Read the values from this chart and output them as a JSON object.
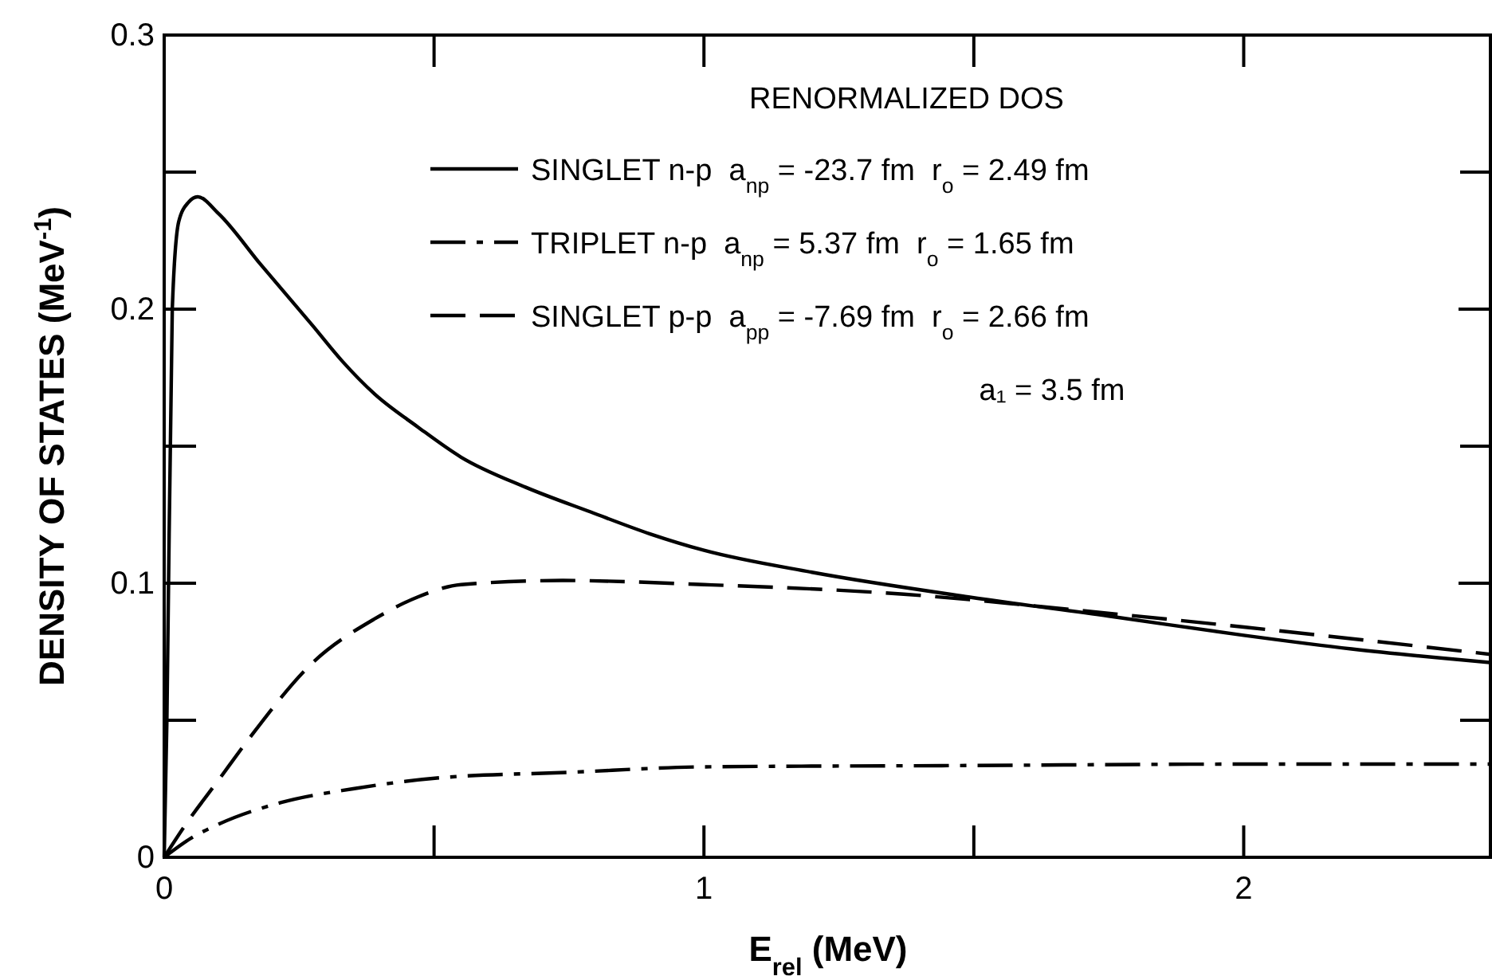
{
  "chart_data": {
    "type": "line",
    "xlabel": "E$_{rel}$  (MeV)",
    "ylabel": "DENSITY OF STATES (MeV$^{-1}$)",
    "legend_title": "RENORMALIZED DOS",
    "legend": "top",
    "xlim": [
      0,
      2.46
    ],
    "ylim": [
      0,
      0.3
    ],
    "xticks": [
      0,
      1,
      2
    ],
    "yticks": [
      0,
      0.1,
      0.2,
      0.3
    ],
    "grid": false,
    "marker": "none",
    "annotations": [
      "a₁ = 3.5 fm"
    ],
    "series": [
      {
        "name": "SINGLET n-p  a$_{np}$ = -23.7 fm  r$_{o}$ = 2.49 fm",
        "color": "#000000",
        "line_style": "solid",
        "x": [
          0,
          0.005,
          0.015,
          0.027,
          0.045,
          0.062,
          0.1,
          0.18,
          0.275,
          0.33,
          0.39,
          0.47,
          0.55,
          0.67,
          0.79,
          0.9,
          1.0,
          1.2,
          1.49,
          1.75,
          2.0,
          2.2,
          2.46
        ],
        "values": [
          0,
          0.05,
          0.2,
          0.232,
          0.239,
          0.241,
          0.235,
          0.216,
          0.194,
          0.181,
          0.169,
          0.157,
          0.146,
          0.135,
          0.126,
          0.118,
          0.112,
          0.104,
          0.095,
          0.088,
          0.081,
          0.076,
          0.071
        ]
      },
      {
        "name": "TRIPLET n-p  a$_{np}$ = 5.37 fm  r$_{o}$ = 1.65 fm",
        "color": "#000000",
        "line_style": "dashdot",
        "x": [
          0,
          0.05,
          0.1,
          0.217,
          0.35,
          0.51,
          0.75,
          1.0,
          1.5,
          2.0,
          2.46
        ],
        "values": [
          0,
          0.007,
          0.012,
          0.02,
          0.025,
          0.029,
          0.031,
          0.033,
          0.0335,
          0.034,
          0.034
        ]
      },
      {
        "name": "SINGLET p-p  a$_{pp}$ = -7.69 fm  r$_{o}$ = 2.66 fm",
        "color": "#000000",
        "line_style": "dashed",
        "x": [
          0,
          0.04,
          0.1,
          0.16,
          0.275,
          0.39,
          0.47,
          0.55,
          0.74,
          1.0,
          1.37,
          1.7,
          2.0,
          2.46
        ],
        "values": [
          0,
          0.012,
          0.028,
          0.044,
          0.071,
          0.087,
          0.095,
          0.0995,
          0.101,
          0.0995,
          0.096,
          0.09,
          0.084,
          0.074
        ]
      }
    ]
  }
}
